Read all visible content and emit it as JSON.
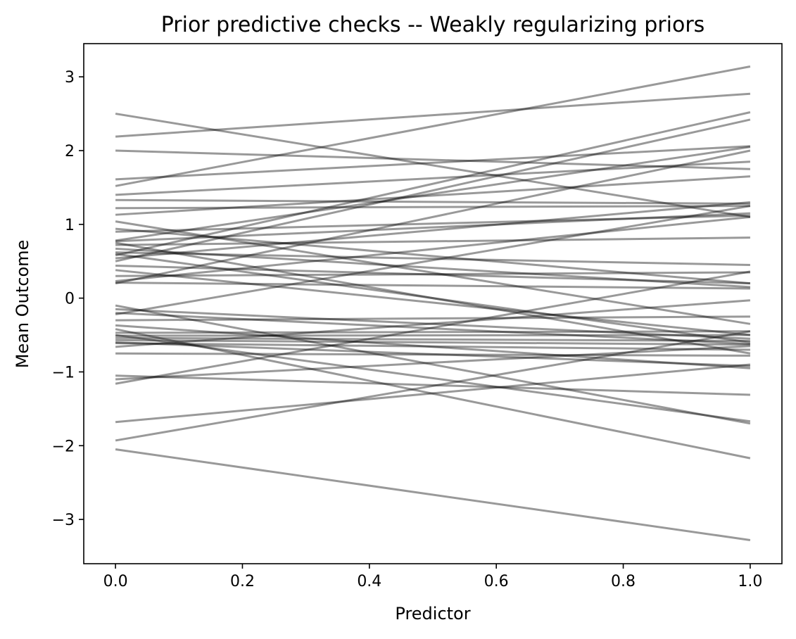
{
  "chart_data": {
    "type": "line",
    "title": "Prior predictive checks -- Weakly regularizing priors",
    "xlabel": "Predictor",
    "ylabel": "Mean Outcome",
    "xlim": [
      -0.05,
      1.05
    ],
    "ylim": [
      -3.6,
      3.45
    ],
    "xticks": [
      0.0,
      0.2,
      0.4,
      0.6,
      0.8,
      1.0
    ],
    "xtick_labels": [
      "0.0",
      "0.2",
      "0.4",
      "0.6",
      "0.8",
      "1.0"
    ],
    "yticks": [
      -3,
      -2,
      -1,
      0,
      1,
      2,
      3
    ],
    "ytick_labels": [
      "−3",
      "−2",
      "−1",
      "0",
      "1",
      "2",
      "3"
    ],
    "grid": false,
    "line_color": "#000000",
    "line_alpha": 0.4,
    "lines": [
      {
        "x": [
          0,
          1
        ],
        "y": [
          2.5,
          1.1
        ]
      },
      {
        "x": [
          0,
          1
        ],
        "y": [
          2.19,
          2.77
        ]
      },
      {
        "x": [
          0,
          1
        ],
        "y": [
          2.0,
          1.75
        ]
      },
      {
        "x": [
          0,
          1
        ],
        "y": [
          1.61,
          2.06
        ]
      },
      {
        "x": [
          0,
          1
        ],
        "y": [
          1.52,
          3.14
        ]
      },
      {
        "x": [
          0,
          1
        ],
        "y": [
          1.4,
          1.85
        ]
      },
      {
        "x": [
          0,
          1
        ],
        "y": [
          1.33,
          1.28
        ]
      },
      {
        "x": [
          0,
          1
        ],
        "y": [
          1.22,
          1.25
        ]
      },
      {
        "x": [
          0,
          1
        ],
        "y": [
          1.13,
          1.65
        ]
      },
      {
        "x": [
          0,
          1
        ],
        "y": [
          1.04,
          -0.35
        ]
      },
      {
        "x": [
          0,
          1
        ],
        "y": [
          0.94,
          0.2
        ]
      },
      {
        "x": [
          0,
          1
        ],
        "y": [
          0.78,
          2.05
        ]
      },
      {
        "x": [
          0,
          1
        ],
        "y": [
          0.77,
          1.15
        ]
      },
      {
        "x": [
          0,
          1
        ],
        "y": [
          0.72,
          0.82
        ]
      },
      {
        "x": [
          0,
          1
        ],
        "y": [
          0.67,
          0.15
        ]
      },
      {
        "x": [
          0,
          1
        ],
        "y": [
          0.62,
          0.45
        ]
      },
      {
        "x": [
          0,
          1
        ],
        "y": [
          0.58,
          2.52
        ]
      },
      {
        "x": [
          0,
          1
        ],
        "y": [
          0.54,
          1.3
        ]
      },
      {
        "x": [
          0,
          1
        ],
        "y": [
          0.5,
          2.42
        ]
      },
      {
        "x": [
          0,
          1
        ],
        "y": [
          0.44,
          0.2
        ]
      },
      {
        "x": [
          0,
          1
        ],
        "y": [
          0.38,
          -0.5
        ]
      },
      {
        "x": [
          0,
          1
        ],
        "y": [
          0.3,
          0.35
        ]
      },
      {
        "x": [
          0,
          1
        ],
        "y": [
          0.23,
          1.1
        ]
      },
      {
        "x": [
          0,
          1
        ],
        "y": [
          0.21,
          0.13
        ]
      },
      {
        "x": [
          0,
          1
        ],
        "y": [
          0.2,
          2.0
        ]
      },
      {
        "x": [
          0,
          1
        ],
        "y": [
          -0.1,
          -1.7
        ]
      },
      {
        "x": [
          0,
          1
        ],
        "y": [
          -0.15,
          -0.55
        ]
      },
      {
        "x": [
          0,
          1
        ],
        "y": [
          -0.22,
          1.25
        ]
      },
      {
        "x": [
          0,
          1
        ],
        "y": [
          -0.3,
          -0.25
        ]
      },
      {
        "x": [
          0,
          1
        ],
        "y": [
          -0.37,
          -0.95
        ]
      },
      {
        "x": [
          0,
          1
        ],
        "y": [
          -0.42,
          -2.17
        ]
      },
      {
        "x": [
          0,
          1
        ],
        "y": [
          -0.47,
          -0.45
        ]
      },
      {
        "x": [
          0,
          1
        ],
        "y": [
          -0.51,
          -0.5
        ]
      },
      {
        "x": [
          0,
          1
        ],
        "y": [
          -0.54,
          -0.58
        ]
      },
      {
        "x": [
          0,
          1
        ],
        "y": [
          -0.57,
          -0.63
        ]
      },
      {
        "x": [
          0,
          1
        ],
        "y": [
          -0.61,
          -0.7
        ]
      },
      {
        "x": [
          0,
          1
        ],
        "y": [
          -0.66,
          -0.03
        ]
      },
      {
        "x": [
          0,
          1
        ],
        "y": [
          -0.75,
          -0.78
        ]
      },
      {
        "x": [
          0,
          1
        ],
        "y": [
          -1.05,
          -1.31
        ]
      },
      {
        "x": [
          0,
          1
        ],
        "y": [
          -1.1,
          -0.65
        ]
      },
      {
        "x": [
          0,
          1
        ],
        "y": [
          -1.16,
          0.36
        ]
      },
      {
        "x": [
          0,
          1
        ],
        "y": [
          -1.68,
          -0.9
        ]
      },
      {
        "x": [
          0,
          1
        ],
        "y": [
          -1.93,
          -0.45
        ]
      },
      {
        "x": [
          0,
          1
        ],
        "y": [
          -2.05,
          -3.28
        ]
      },
      {
        "x": [
          0,
          1
        ],
        "y": [
          0.75,
          -0.75
        ]
      },
      {
        "x": [
          0,
          1
        ],
        "y": [
          0.6,
          -0.6
        ]
      },
      {
        "x": [
          0,
          1
        ],
        "y": [
          -0.5,
          -1.67
        ]
      },
      {
        "x": [
          0,
          1
        ],
        "y": [
          -0.6,
          -0.92
        ]
      },
      {
        "x": [
          0,
          1
        ],
        "y": [
          0.9,
          1.12
        ]
      },
      {
        "x": [
          0,
          1
        ],
        "y": [
          -0.2,
          -0.62
        ]
      }
    ]
  }
}
